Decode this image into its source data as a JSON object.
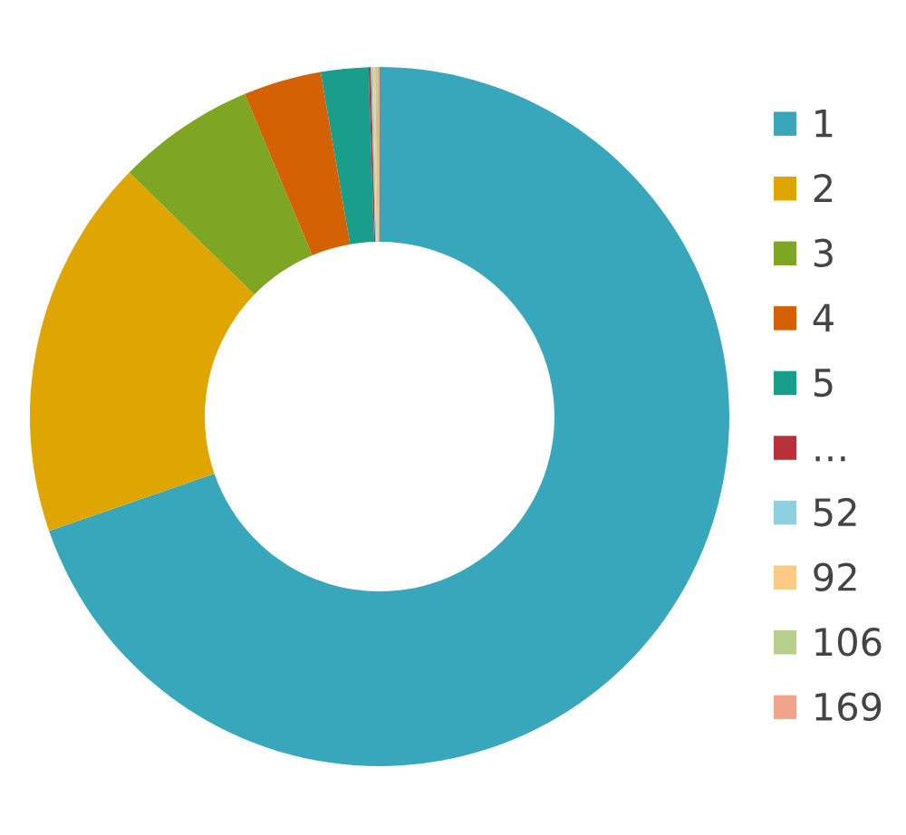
{
  "chart_data": {
    "type": "donut",
    "categories": [
      "1",
      "2",
      "3",
      "4",
      "5",
      "…",
      "52",
      "92",
      "106",
      "169"
    ],
    "values": [
      69.7,
      17.6,
      6.4,
      3.6,
      2.2,
      0.1,
      0.1,
      0.1,
      0.1,
      0.1
    ],
    "colors": [
      "#38a6bb",
      "#dfa500",
      "#7fa623",
      "#d46205",
      "#189e8a",
      "#b83038",
      "#8ecfe0",
      "#fbcb85",
      "#b6cf8c",
      "#f3a58b"
    ],
    "legend": "right"
  }
}
